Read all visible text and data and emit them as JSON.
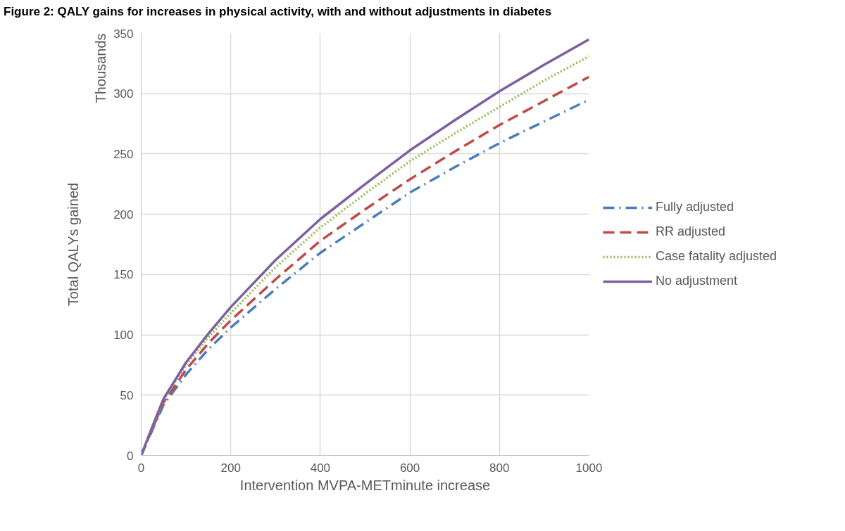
{
  "chart_data": {
    "type": "line",
    "title": "Figure 2: QALY gains for increases in physical activity, with and without adjustments in diabetes",
    "xlabel": "Intervention MVPA-METminute increase",
    "ylabel": "Total QALYs gained",
    "annotations": [
      "Thousands"
    ],
    "x": [
      0,
      25,
      50,
      100,
      150,
      200,
      300,
      400,
      500,
      600,
      700,
      800,
      900,
      1000
    ],
    "series": [
      {
        "name": "Fully adjusted",
        "color": "#4a7ebb",
        "line_style": "dashdot",
        "values": [
          0,
          21,
          42,
          67,
          88,
          106,
          138,
          168,
          193,
          218,
          239,
          259,
          277,
          295
        ]
      },
      {
        "name": "RR adjusted",
        "color": "#be4b48",
        "line_style": "dashed",
        "values": [
          0,
          22,
          44,
          71,
          93,
          112,
          146,
          178,
          204,
          229,
          252,
          274,
          294,
          314
        ]
      },
      {
        "name": "Case fatality adjusted",
        "color": "#98b954",
        "line_style": "dotted",
        "values": [
          0,
          23,
          46,
          75,
          98,
          118,
          156,
          189,
          217,
          244,
          267,
          289,
          311,
          331
        ]
      },
      {
        "name": "No adjustment",
        "color": "#7d60a0",
        "line_style": "solid",
        "values": [
          0,
          24,
          47,
          77,
          101,
          123,
          162,
          196,
          225,
          253,
          278,
          302,
          324,
          345
        ]
      }
    ],
    "xlim": [
      0,
      1000
    ],
    "xticks": [
      0,
      200,
      400,
      600,
      800,
      1000
    ],
    "ylim": [
      0,
      350
    ],
    "yticks": [
      0,
      50,
      100,
      150,
      200,
      250,
      300,
      350
    ],
    "grid": true,
    "legend": "right",
    "marker": "none"
  }
}
